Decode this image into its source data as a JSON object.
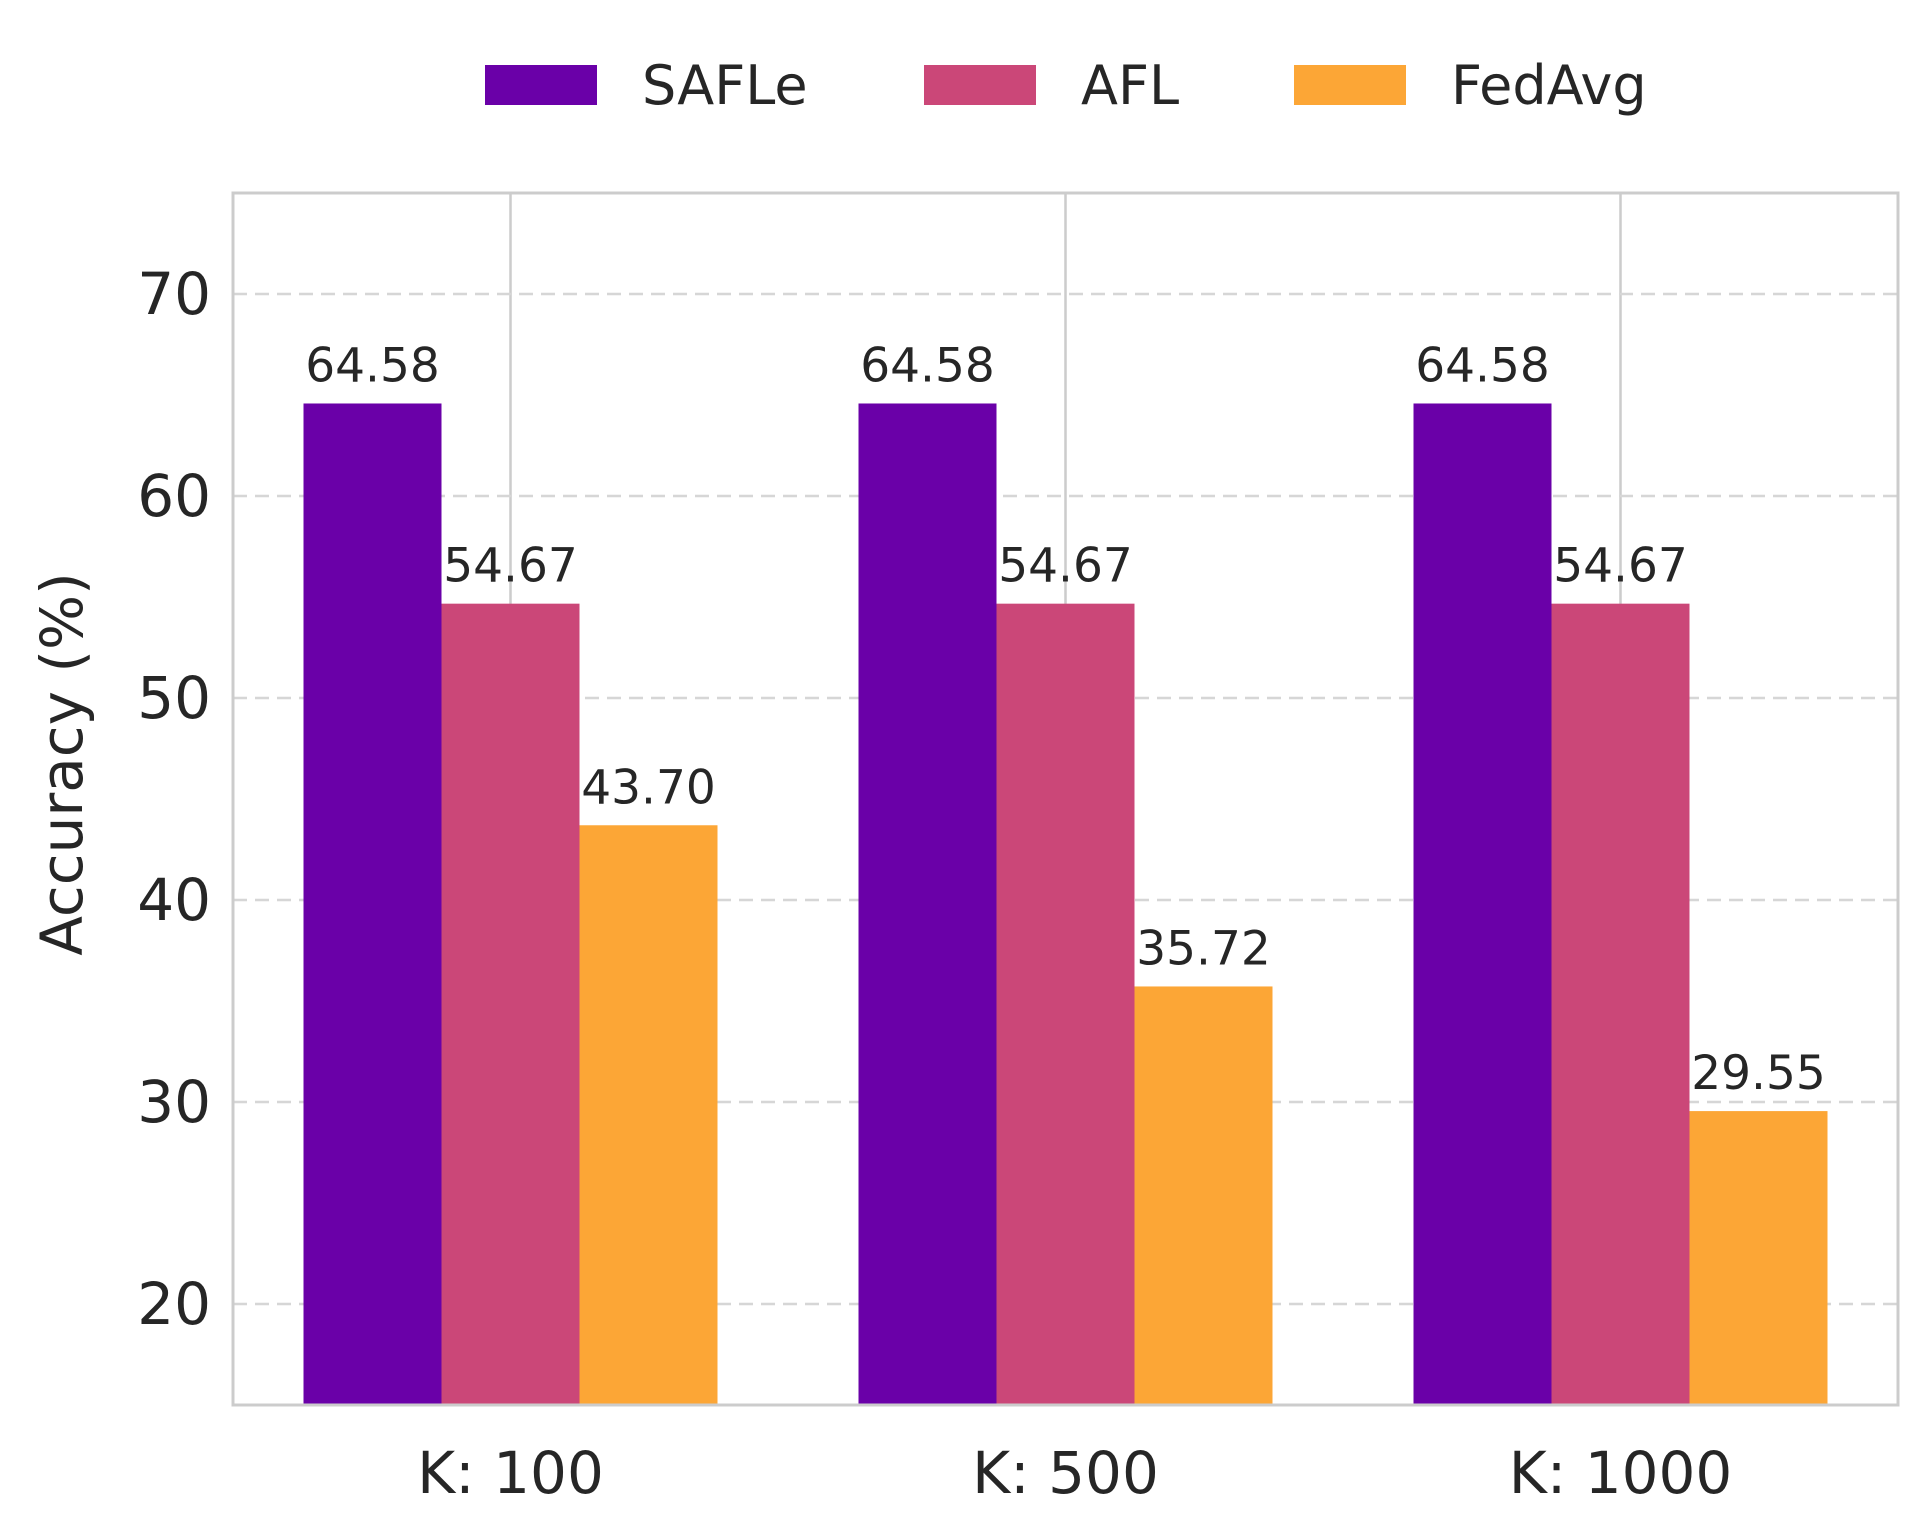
{
  "chart_data": {
    "type": "bar",
    "title": "",
    "xlabel": "",
    "ylabel": "Accuracy (%)",
    "ylim": [
      15,
      75
    ],
    "yticks": [
      20,
      30,
      40,
      50,
      60,
      70
    ],
    "categories": [
      "K: 100",
      "K: 500",
      "K: 1000"
    ],
    "series": [
      {
        "name": "SAFLe",
        "color": "#6a00a8",
        "values": [
          64.58,
          64.58,
          64.58
        ],
        "labels": [
          "64.58",
          "64.58",
          "64.58"
        ]
      },
      {
        "name": "AFL",
        "color": "#cb4778",
        "values": [
          54.67,
          54.67,
          54.67
        ],
        "labels": [
          "54.67",
          "54.67",
          "54.67"
        ]
      },
      {
        "name": "FedAvg",
        "color": "#fca636",
        "values": [
          43.7,
          35.72,
          29.55
        ],
        "labels": [
          "43.70",
          "35.72",
          "29.55"
        ]
      }
    ],
    "legend": "top-center",
    "grid": {
      "horizontal": "dashed",
      "vertical": "solid"
    }
  }
}
